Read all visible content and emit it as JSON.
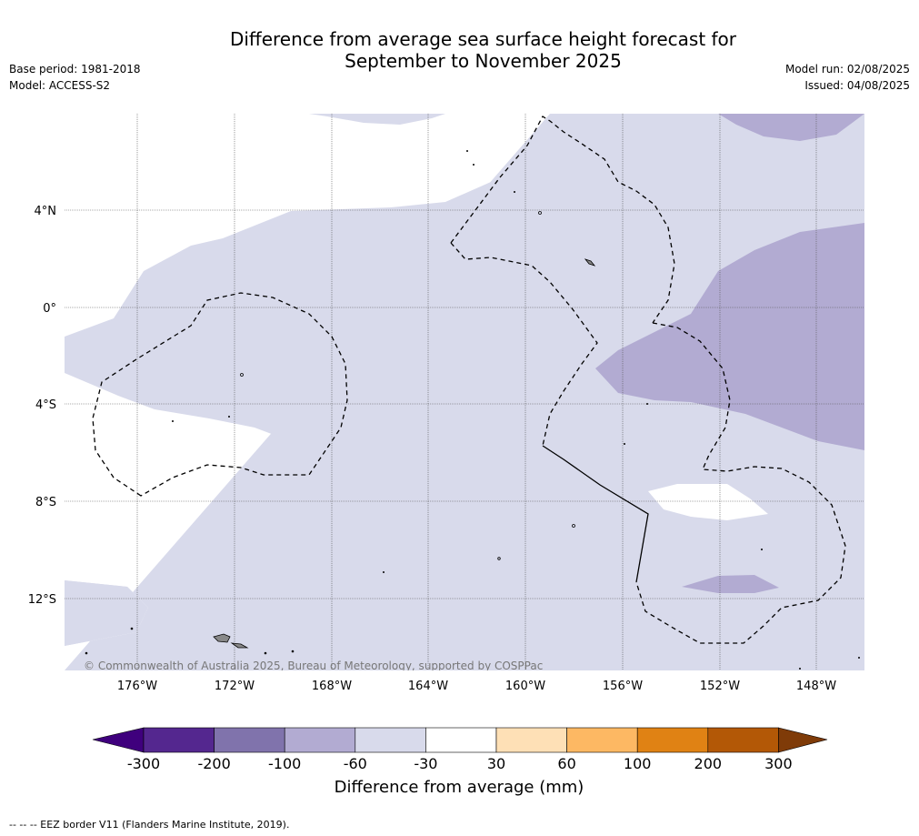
{
  "title": {
    "line1": "Difference from average sea surface height forecast for",
    "line2": "September to November 2025"
  },
  "meta_left": {
    "base_period": "Base period: 1981-2018",
    "model": "Model: ACCESS-S2"
  },
  "meta_right": {
    "model_run": "Model run: 02/08/2025",
    "issued": "Issued: 04/08/2025"
  },
  "map": {
    "lon_labels": [
      "176°W",
      "172°W",
      "168°W",
      "164°W",
      "160°W",
      "156°W",
      "152°W",
      "148°W"
    ],
    "lat_labels": [
      "4°N",
      "0°",
      "4°S",
      "8°S",
      "12°S"
    ],
    "gridlines": true,
    "copyright": "© Commonwealth of Australia 2025, Bureau of Meteorology, supported by COSPPac",
    "field_categories_present": [
      "-100 to -60",
      "-60 to -30",
      "-30 to 30"
    ]
  },
  "colorbar": {
    "title": "Difference from average (mm)",
    "ticks": [
      "-300",
      "-200",
      "-100",
      "-60",
      "-30",
      "30",
      "60",
      "100",
      "200",
      "300"
    ],
    "colors": [
      "#3f007d",
      "#54278f",
      "#8073ac",
      "#b2abd2",
      "#d8daeb",
      "#ffffff",
      "#fee0b6",
      "#fdb863",
      "#e08214",
      "#b35806",
      "#7f3b08"
    ]
  },
  "footnote": "-- -- -- EEZ border V11 (Flanders Marine Institute, 2019)."
}
